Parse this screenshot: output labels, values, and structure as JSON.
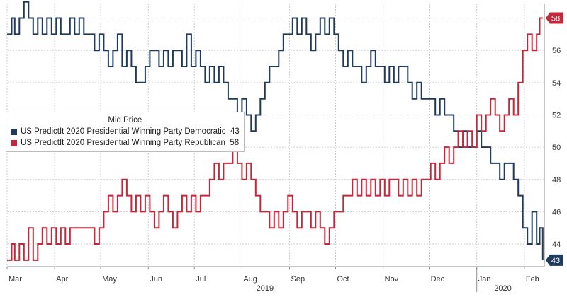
{
  "chart_data": {
    "type": "line",
    "legend_title": "Mid Price",
    "legend_position": "top-left",
    "grid": true,
    "ylim": [
      42.6,
      58.9
    ],
    "yticks": [
      44,
      46,
      48,
      50,
      52,
      54,
      56,
      58
    ],
    "xlim": [
      "2019-03-01",
      "2020-02-14"
    ],
    "month_ticks": [
      {
        "label": "Mar",
        "date": "2019-03-01"
      },
      {
        "label": "Apr",
        "date": "2019-04-01"
      },
      {
        "label": "May",
        "date": "2019-05-01"
      },
      {
        "label": "Jun",
        "date": "2019-06-01"
      },
      {
        "label": "Jul",
        "date": "2019-07-01"
      },
      {
        "label": "Aug",
        "date": "2019-08-01"
      },
      {
        "label": "Sep",
        "date": "2019-09-01"
      },
      {
        "label": "Oct",
        "date": "2019-10-01"
      },
      {
        "label": "Nov",
        "date": "2019-11-01"
      },
      {
        "label": "Dec",
        "date": "2019-12-01"
      },
      {
        "label": "Jan",
        "date": "2020-01-01"
      },
      {
        "label": "Feb",
        "date": "2020-02-01"
      }
    ],
    "year_labels": [
      {
        "label": "2019",
        "date": "2019-08-16"
      },
      {
        "label": "2020",
        "date": "2020-01-18"
      }
    ],
    "year_dividers": [
      "2020-01-01"
    ],
    "series": [
      {
        "name": "US PredictIt 2020 Presidential Winning Party Democratic",
        "last_value": "43",
        "color": "#1f3a5a",
        "points": [
          [
            "2019-03-01",
            57
          ],
          [
            "2019-03-04",
            58
          ],
          [
            "2019-03-06",
            57
          ],
          [
            "2019-03-09",
            58
          ],
          [
            "2019-03-12",
            59
          ],
          [
            "2019-03-15",
            58
          ],
          [
            "2019-03-18",
            57
          ],
          [
            "2019-03-21",
            58
          ],
          [
            "2019-03-24",
            57
          ],
          [
            "2019-03-27",
            58
          ],
          [
            "2019-03-30",
            57
          ],
          [
            "2019-04-02",
            58
          ],
          [
            "2019-04-05",
            57
          ],
          [
            "2019-04-08",
            57
          ],
          [
            "2019-04-11",
            58
          ],
          [
            "2019-04-14",
            57
          ],
          [
            "2019-04-17",
            58
          ],
          [
            "2019-04-20",
            57
          ],
          [
            "2019-04-23",
            57
          ],
          [
            "2019-04-27",
            56
          ],
          [
            "2019-04-30",
            57
          ],
          [
            "2019-05-03",
            56
          ],
          [
            "2019-05-06",
            55
          ],
          [
            "2019-05-09",
            56
          ],
          [
            "2019-05-12",
            57
          ],
          [
            "2019-05-15",
            55
          ],
          [
            "2019-05-18",
            56
          ],
          [
            "2019-05-21",
            55
          ],
          [
            "2019-05-24",
            54
          ],
          [
            "2019-05-27",
            54
          ],
          [
            "2019-05-30",
            55
          ],
          [
            "2019-06-02",
            56
          ],
          [
            "2019-06-05",
            56
          ],
          [
            "2019-06-08",
            55
          ],
          [
            "2019-06-11",
            56
          ],
          [
            "2019-06-14",
            55
          ],
          [
            "2019-06-17",
            56
          ],
          [
            "2019-06-20",
            56
          ],
          [
            "2019-06-23",
            55
          ],
          [
            "2019-06-26",
            57
          ],
          [
            "2019-06-29",
            55
          ],
          [
            "2019-07-02",
            56
          ],
          [
            "2019-07-05",
            55
          ],
          [
            "2019-07-08",
            54
          ],
          [
            "2019-07-11",
            55
          ],
          [
            "2019-07-14",
            54
          ],
          [
            "2019-07-17",
            55
          ],
          [
            "2019-07-20",
            54
          ],
          [
            "2019-07-23",
            53
          ],
          [
            "2019-07-26",
            53
          ],
          [
            "2019-07-29",
            52
          ],
          [
            "2019-08-01",
            53
          ],
          [
            "2019-08-04",
            52
          ],
          [
            "2019-08-07",
            51
          ],
          [
            "2019-08-10",
            52
          ],
          [
            "2019-08-13",
            53
          ],
          [
            "2019-08-16",
            54
          ],
          [
            "2019-08-19",
            55
          ],
          [
            "2019-08-22",
            55
          ],
          [
            "2019-08-25",
            56
          ],
          [
            "2019-08-28",
            57
          ],
          [
            "2019-08-31",
            57
          ],
          [
            "2019-09-03",
            58
          ],
          [
            "2019-09-06",
            57
          ],
          [
            "2019-09-09",
            58
          ],
          [
            "2019-09-12",
            57
          ],
          [
            "2019-09-15",
            56
          ],
          [
            "2019-09-18",
            57
          ],
          [
            "2019-09-21",
            58
          ],
          [
            "2019-09-24",
            57
          ],
          [
            "2019-09-27",
            58
          ],
          [
            "2019-09-30",
            57
          ],
          [
            "2019-10-03",
            56
          ],
          [
            "2019-10-06",
            55
          ],
          [
            "2019-10-09",
            56
          ],
          [
            "2019-10-12",
            55
          ],
          [
            "2019-10-15",
            55
          ],
          [
            "2019-10-18",
            54
          ],
          [
            "2019-10-21",
            55
          ],
          [
            "2019-10-24",
            56
          ],
          [
            "2019-10-27",
            55
          ],
          [
            "2019-10-30",
            55
          ],
          [
            "2019-11-02",
            54
          ],
          [
            "2019-11-05",
            55
          ],
          [
            "2019-11-08",
            54
          ],
          [
            "2019-11-11",
            55
          ],
          [
            "2019-11-14",
            55
          ],
          [
            "2019-11-17",
            54
          ],
          [
            "2019-11-20",
            53
          ],
          [
            "2019-11-23",
            54
          ],
          [
            "2019-11-26",
            53
          ],
          [
            "2019-11-29",
            53
          ],
          [
            "2019-12-02",
            53
          ],
          [
            "2019-12-05",
            52
          ],
          [
            "2019-12-08",
            53
          ],
          [
            "2019-12-11",
            52
          ],
          [
            "2019-12-14",
            52
          ],
          [
            "2019-12-17",
            51
          ],
          [
            "2019-12-20",
            50
          ],
          [
            "2019-12-23",
            51
          ],
          [
            "2019-12-26",
            50
          ],
          [
            "2019-12-29",
            50
          ],
          [
            "2020-01-01",
            51
          ],
          [
            "2020-01-04",
            50
          ],
          [
            "2020-01-07",
            50
          ],
          [
            "2020-01-10",
            49
          ],
          [
            "2020-01-13",
            49
          ],
          [
            "2020-01-16",
            48
          ],
          [
            "2020-01-19",
            49
          ],
          [
            "2020-01-22",
            49
          ],
          [
            "2020-01-25",
            48
          ],
          [
            "2020-01-28",
            47
          ],
          [
            "2020-01-31",
            45
          ],
          [
            "2020-02-03",
            44
          ],
          [
            "2020-02-06",
            46
          ],
          [
            "2020-02-09",
            44
          ],
          [
            "2020-02-11",
            45
          ],
          [
            "2020-02-13",
            43
          ]
        ]
      },
      {
        "name": "US PredictIt 2020 Presidential Winning Party Republican",
        "last_value": "58",
        "color": "#c0283c",
        "points": [
          [
            "2019-03-01",
            43
          ],
          [
            "2019-03-04",
            44
          ],
          [
            "2019-03-06",
            43
          ],
          [
            "2019-03-09",
            44
          ],
          [
            "2019-03-12",
            43
          ],
          [
            "2019-03-15",
            45
          ],
          [
            "2019-03-18",
            43
          ],
          [
            "2019-03-21",
            44
          ],
          [
            "2019-03-24",
            45
          ],
          [
            "2019-03-27",
            44
          ],
          [
            "2019-03-30",
            45
          ],
          [
            "2019-04-02",
            44
          ],
          [
            "2019-04-05",
            45
          ],
          [
            "2019-04-08",
            44
          ],
          [
            "2019-04-11",
            45
          ],
          [
            "2019-04-14",
            45
          ],
          [
            "2019-04-17",
            45
          ],
          [
            "2019-04-20",
            45
          ],
          [
            "2019-04-23",
            45
          ],
          [
            "2019-04-27",
            44
          ],
          [
            "2019-04-30",
            45
          ],
          [
            "2019-05-03",
            46
          ],
          [
            "2019-05-06",
            47
          ],
          [
            "2019-05-09",
            46
          ],
          [
            "2019-05-12",
            47
          ],
          [
            "2019-05-15",
            48
          ],
          [
            "2019-05-18",
            47
          ],
          [
            "2019-05-21",
            46
          ],
          [
            "2019-05-24",
            47
          ],
          [
            "2019-05-27",
            46
          ],
          [
            "2019-05-30",
            47
          ],
          [
            "2019-06-02",
            46
          ],
          [
            "2019-06-05",
            45
          ],
          [
            "2019-06-08",
            46
          ],
          [
            "2019-06-11",
            47
          ],
          [
            "2019-06-14",
            46
          ],
          [
            "2019-06-17",
            45
          ],
          [
            "2019-06-20",
            46
          ],
          [
            "2019-06-23",
            47
          ],
          [
            "2019-06-26",
            46
          ],
          [
            "2019-06-29",
            47
          ],
          [
            "2019-07-02",
            46
          ],
          [
            "2019-07-05",
            47
          ],
          [
            "2019-07-08",
            47
          ],
          [
            "2019-07-11",
            48
          ],
          [
            "2019-07-14",
            49
          ],
          [
            "2019-07-17",
            48
          ],
          [
            "2019-07-20",
            49
          ],
          [
            "2019-07-23",
            49
          ],
          [
            "2019-07-26",
            50
          ],
          [
            "2019-07-29",
            49
          ],
          [
            "2019-08-01",
            48
          ],
          [
            "2019-08-04",
            49
          ],
          [
            "2019-08-07",
            48
          ],
          [
            "2019-08-10",
            47
          ],
          [
            "2019-08-13",
            46
          ],
          [
            "2019-08-16",
            46
          ],
          [
            "2019-08-19",
            45
          ],
          [
            "2019-08-22",
            46
          ],
          [
            "2019-08-25",
            45
          ],
          [
            "2019-08-28",
            46
          ],
          [
            "2019-08-31",
            47
          ],
          [
            "2019-09-03",
            46
          ],
          [
            "2019-09-06",
            45
          ],
          [
            "2019-09-09",
            46
          ],
          [
            "2019-09-12",
            46
          ],
          [
            "2019-09-15",
            45
          ],
          [
            "2019-09-18",
            46
          ],
          [
            "2019-09-21",
            45
          ],
          [
            "2019-09-24",
            44
          ],
          [
            "2019-09-27",
            45
          ],
          [
            "2019-09-30",
            46
          ],
          [
            "2019-10-03",
            46
          ],
          [
            "2019-10-06",
            47
          ],
          [
            "2019-10-09",
            47
          ],
          [
            "2019-10-12",
            48
          ],
          [
            "2019-10-15",
            47
          ],
          [
            "2019-10-18",
            48
          ],
          [
            "2019-10-21",
            47
          ],
          [
            "2019-10-24",
            48
          ],
          [
            "2019-10-27",
            47
          ],
          [
            "2019-10-30",
            48
          ],
          [
            "2019-11-02",
            47
          ],
          [
            "2019-11-05",
            48
          ],
          [
            "2019-11-08",
            48
          ],
          [
            "2019-11-11",
            47
          ],
          [
            "2019-11-14",
            48
          ],
          [
            "2019-11-17",
            47
          ],
          [
            "2019-11-20",
            48
          ],
          [
            "2019-11-23",
            47
          ],
          [
            "2019-11-26",
            48
          ],
          [
            "2019-11-29",
            48
          ],
          [
            "2019-12-02",
            49
          ],
          [
            "2019-12-05",
            48
          ],
          [
            "2019-12-08",
            49
          ],
          [
            "2019-12-11",
            50
          ],
          [
            "2019-12-14",
            49
          ],
          [
            "2019-12-17",
            50
          ],
          [
            "2019-12-20",
            51
          ],
          [
            "2019-12-23",
            50
          ],
          [
            "2019-12-26",
            51
          ],
          [
            "2019-12-29",
            50
          ],
          [
            "2020-01-01",
            52
          ],
          [
            "2020-01-04",
            51
          ],
          [
            "2020-01-07",
            52
          ],
          [
            "2020-01-10",
            53
          ],
          [
            "2020-01-13",
            52
          ],
          [
            "2020-01-16",
            51
          ],
          [
            "2020-01-19",
            52
          ],
          [
            "2020-01-22",
            53
          ],
          [
            "2020-01-25",
            52
          ],
          [
            "2020-01-28",
            54
          ],
          [
            "2020-01-31",
            56
          ],
          [
            "2020-02-03",
            57
          ],
          [
            "2020-02-06",
            56
          ],
          [
            "2020-02-09",
            57
          ],
          [
            "2020-02-11",
            58
          ],
          [
            "2020-02-13",
            58
          ]
        ]
      }
    ]
  }
}
